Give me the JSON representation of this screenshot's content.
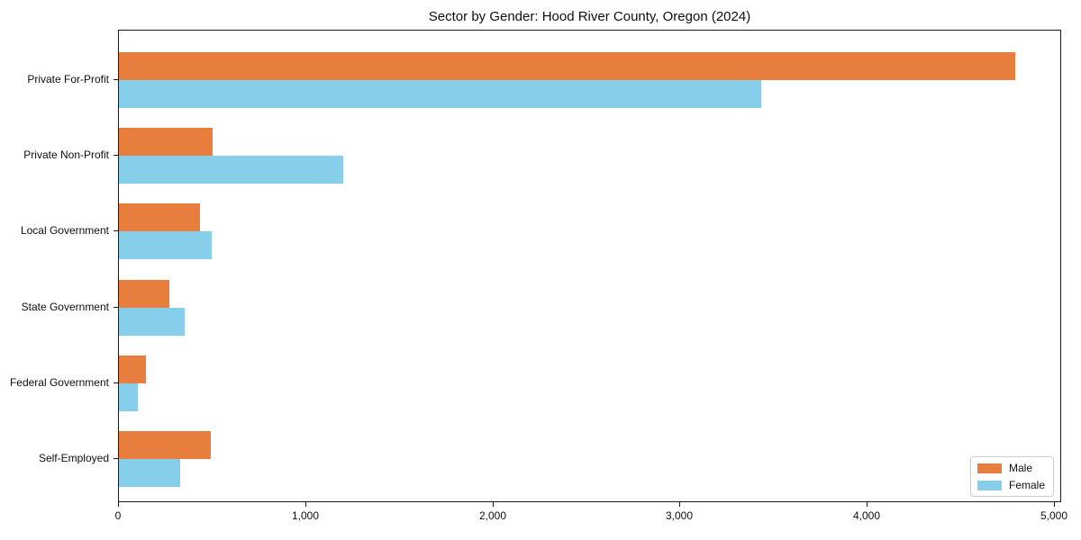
{
  "chart_data": {
    "type": "bar",
    "orientation": "horizontal",
    "title": "Sector by Gender: Hood River County, Oregon (2024)",
    "categories": [
      "Private For-Profit",
      "Private Non-Profit",
      "Local Government",
      "State Government",
      "Federal Government",
      "Self-Employed"
    ],
    "series": [
      {
        "name": "Male",
        "color": "#e87e3e",
        "values": [
          4790,
          500,
          435,
          270,
          145,
          490
        ]
      },
      {
        "name": "Female",
        "color": "#87ceeb",
        "values": [
          3430,
          1200,
          495,
          350,
          100,
          325
        ]
      }
    ],
    "xlim": [
      0,
      5030
    ],
    "xticks": [
      0,
      1000,
      2000,
      3000,
      4000,
      5000
    ],
    "xtick_labels": [
      "0",
      "1,000",
      "2,000",
      "3,000",
      "4,000",
      "5,000"
    ],
    "xlabel": "",
    "ylabel": "",
    "grid": false,
    "legend_position": "lower right"
  }
}
